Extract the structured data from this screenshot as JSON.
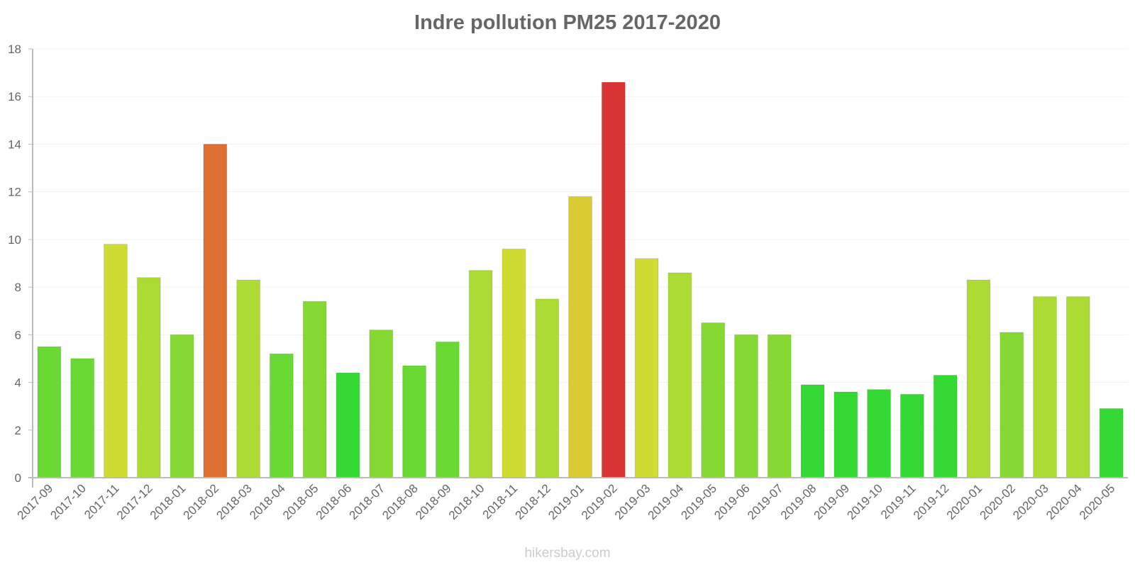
{
  "chart_data": {
    "type": "bar",
    "title": "Indre pollution PM25 2017-2020",
    "xlabel": "",
    "ylabel": "",
    "ylim": [
      0,
      18
    ],
    "yticks": [
      0,
      2,
      4,
      6,
      8,
      10,
      12,
      14,
      16,
      18
    ],
    "grid": true,
    "legend": null,
    "categories": [
      "2017-09",
      "2017-10",
      "2017-11",
      "2017-12",
      "2018-01",
      "2018-02",
      "2018-03",
      "2018-04",
      "2018-05",
      "2018-06",
      "2018-07",
      "2018-08",
      "2018-09",
      "2018-10",
      "2018-11",
      "2018-12",
      "2019-01",
      "2019-02",
      "2019-03",
      "2019-04",
      "2019-05",
      "2019-06",
      "2019-07",
      "2019-08",
      "2019-09",
      "2019-10",
      "2019-11",
      "2019-12",
      "2020-01",
      "2020-02",
      "2020-03",
      "2020-04",
      "2020-05"
    ],
    "values": [
      5.5,
      5.0,
      9.8,
      8.4,
      6.0,
      14.0,
      8.3,
      5.2,
      7.4,
      4.4,
      6.2,
      4.7,
      5.7,
      8.7,
      9.6,
      7.5,
      11.8,
      16.6,
      9.2,
      8.6,
      6.5,
      6.0,
      6.0,
      3.9,
      3.6,
      3.7,
      3.5,
      4.3,
      8.3,
      6.1,
      7.6,
      7.6,
      2.9
    ],
    "colors": [
      "#6ad934",
      "#6ad934",
      "#cedc33",
      "#acdc33",
      "#86d932",
      "#dd6f33",
      "#acdc33",
      "#6ad934",
      "#86d932",
      "#34d934",
      "#86d932",
      "#6ad934",
      "#6ad934",
      "#acdc33",
      "#cedc33",
      "#acdc33",
      "#dacb33",
      "#d93434",
      "#cedc33",
      "#acdc33",
      "#86d932",
      "#86d932",
      "#86d932",
      "#34d934",
      "#34d934",
      "#34d934",
      "#34d934",
      "#34d934",
      "#acdc33",
      "#86d932",
      "#acdc33",
      "#acdc33",
      "#34d934"
    ]
  },
  "watermark": "hikersbay.com"
}
